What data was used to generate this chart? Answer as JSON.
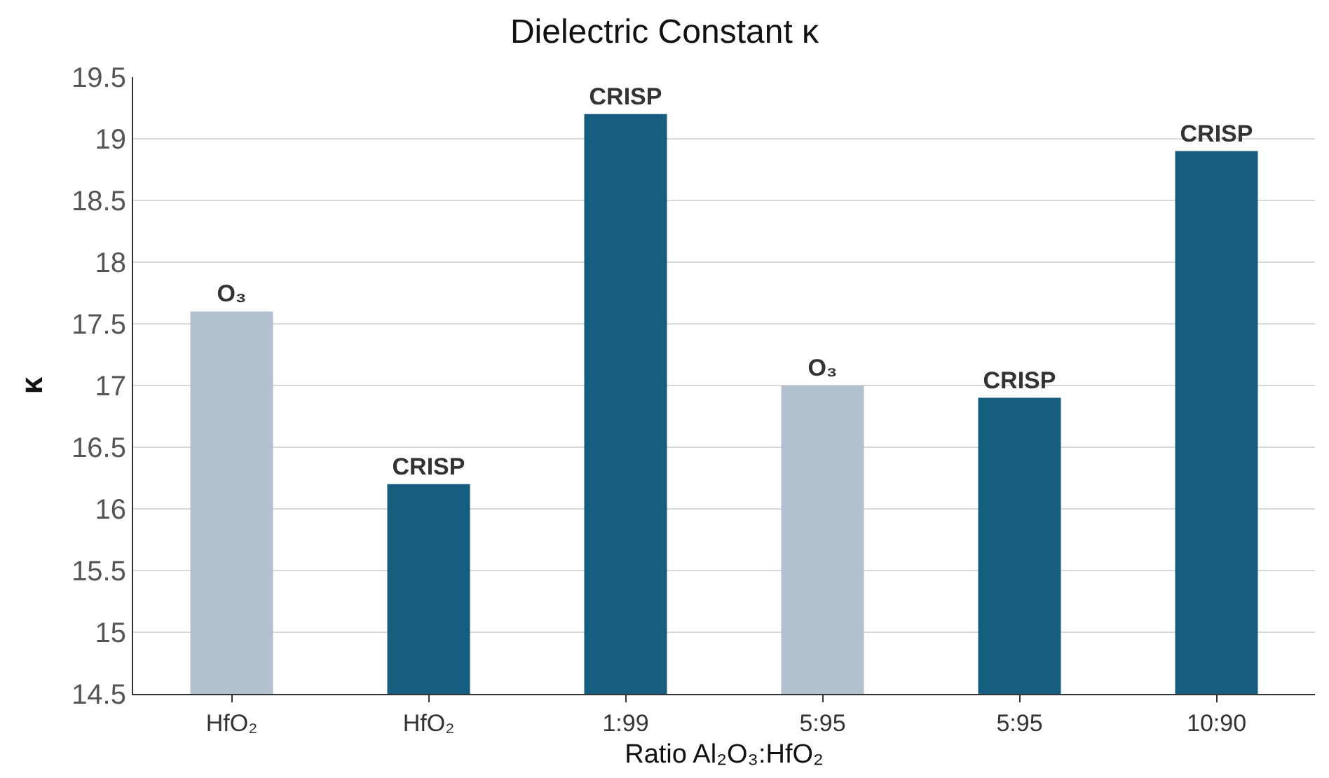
{
  "chart_data": {
    "type": "bar",
    "title": "Dielectric Constant κ",
    "xlabel": "Ratio Al₂O₃:HfO₂",
    "ylabel": "κ",
    "categories": [
      "HfO₂",
      "HfO₂",
      "1:99",
      "5:95",
      "5:95",
      "10:90"
    ],
    "values": [
      17.6,
      16.2,
      19.2,
      17.0,
      16.9,
      18.9
    ],
    "colors": [
      "#b3c0d0",
      "#165e80",
      "#165e80",
      "#b3c0d0",
      "#165e80",
      "#165e80"
    ],
    "value_labels": [
      "O₃",
      "CRISP",
      "CRISP",
      "O₃",
      "CRISP",
      "CRISP"
    ],
    "ylim": [
      14.5,
      19.5
    ],
    "yticks": [
      14.5,
      15,
      15.5,
      16,
      16.5,
      17,
      17.5,
      18,
      18.5,
      19,
      19.5
    ],
    "grid": "y"
  }
}
